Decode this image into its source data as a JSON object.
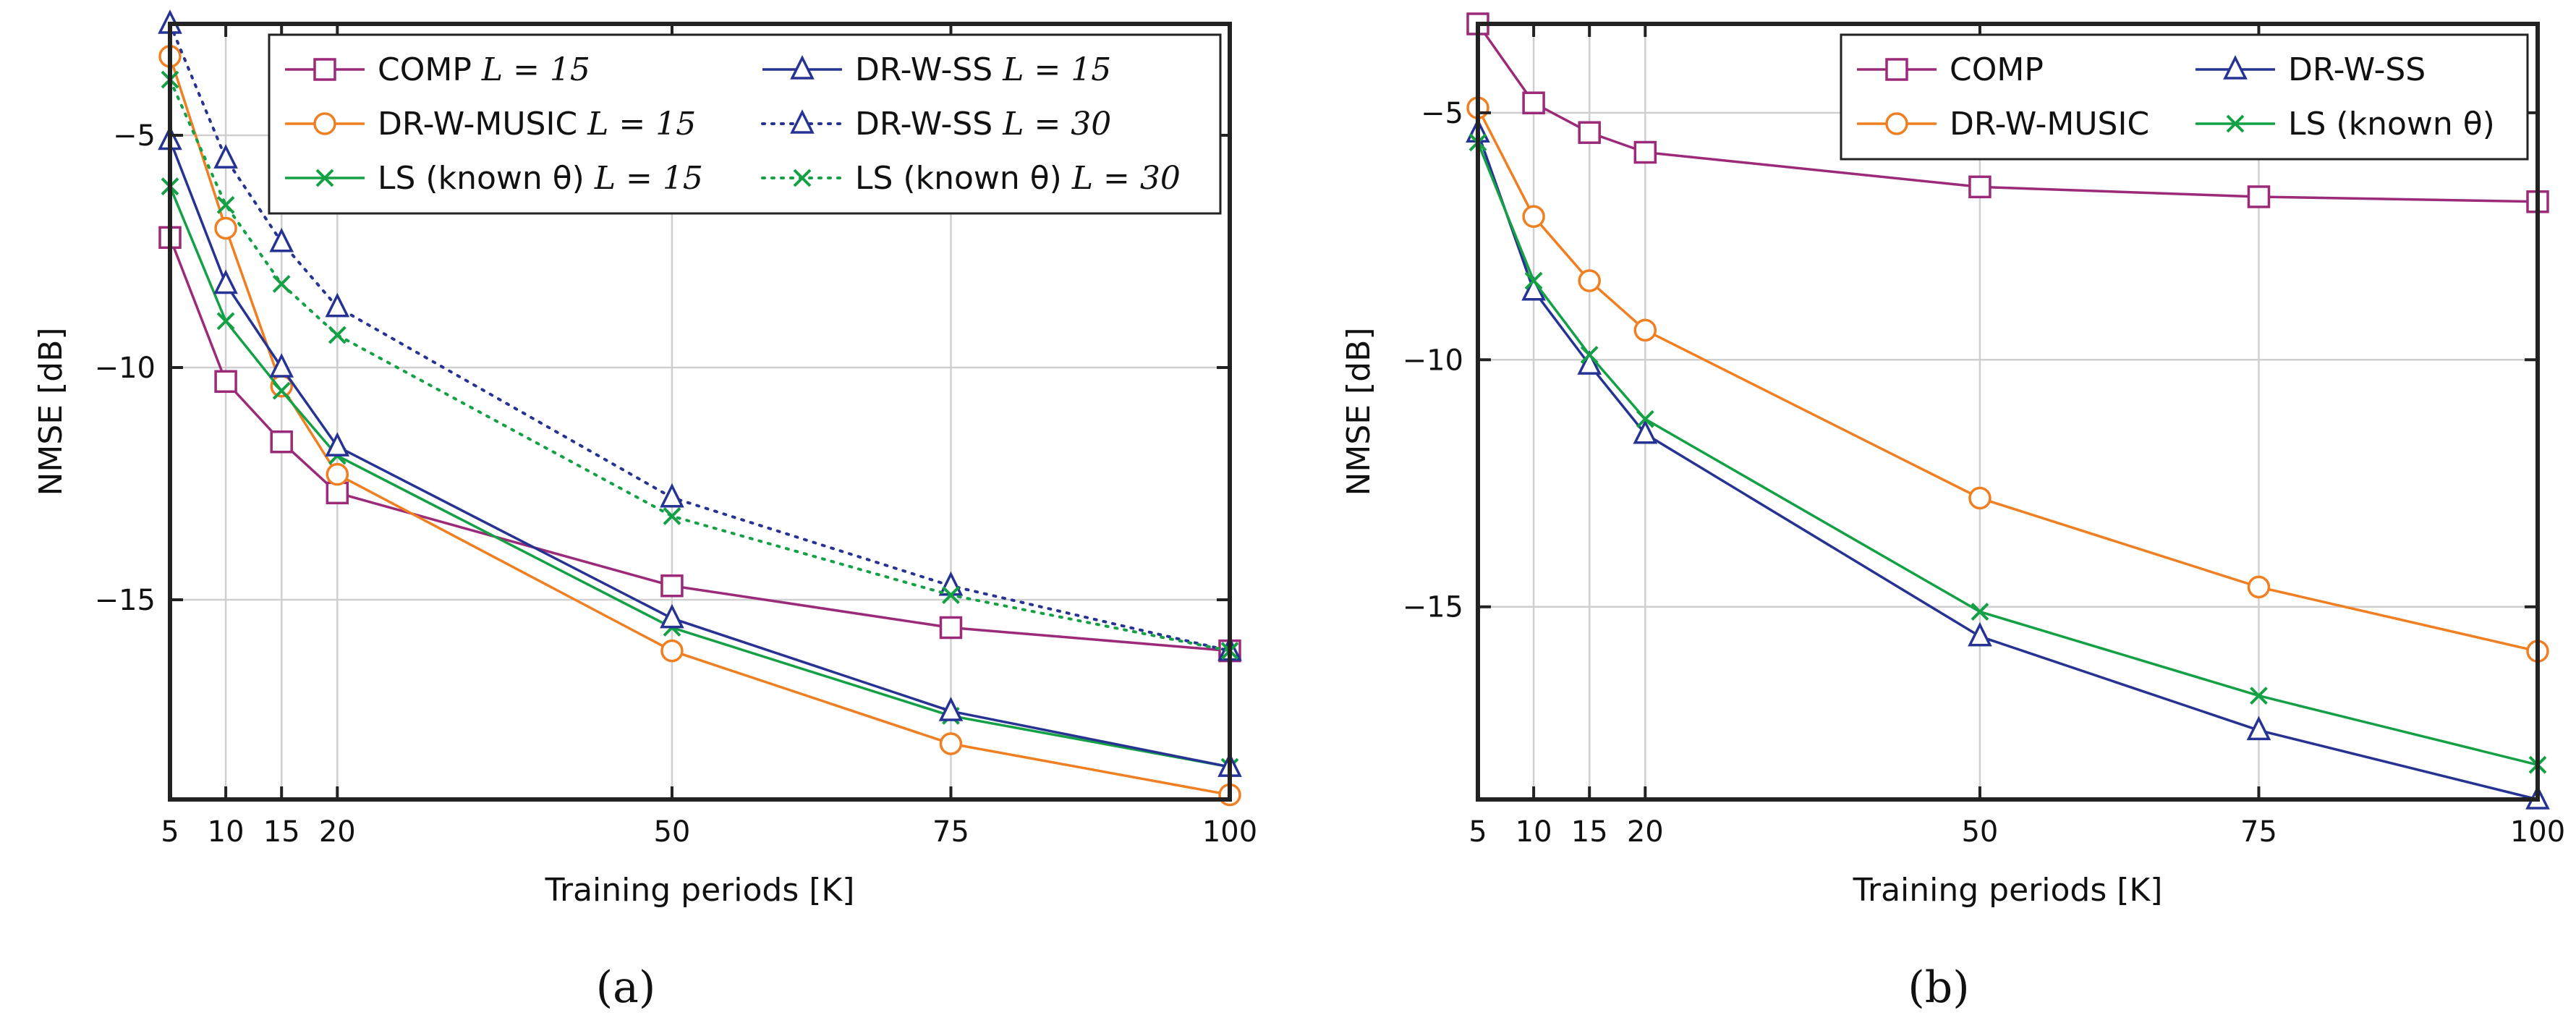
{
  "colors": {
    "comp": "#9b2a78",
    "music": "#f07f22",
    "ss": "#263393",
    "ls": "#14a045",
    "grid": "#cfcfcf",
    "axis": "#222222"
  },
  "chart_data": [
    {
      "type": "line",
      "panel_label": "(a)",
      "xlabel": "Training periods [K]",
      "ylabel": "NMSE [dB]",
      "xlim": [
        5,
        100
      ],
      "ylim": [
        -19.3,
        -2.6
      ],
      "xticks": [
        5,
        10,
        15,
        20,
        50,
        75,
        100
      ],
      "yticks": [
        -5,
        -10,
        -15
      ],
      "ytick_labels": [
        "−5",
        "−10",
        "−15"
      ],
      "grid": true,
      "legend_position": "top-right",
      "x": [
        5,
        10,
        15,
        20,
        50,
        75,
        100
      ],
      "series": [
        {
          "name": "COMP L = 15",
          "label_main": "COMP",
          "label_math": "L = 15",
          "color_key": "comp",
          "marker": "square",
          "dash": "solid",
          "values": [
            -7.2,
            -10.3,
            -11.6,
            -12.7,
            -14.7,
            -15.6,
            -16.1
          ]
        },
        {
          "name": "DR-W-MUSIC L = 15",
          "label_main": "DR-W-MUSIC",
          "label_math": "L = 15",
          "color_key": "music",
          "marker": "circle",
          "dash": "solid",
          "values": [
            -3.3,
            -7.0,
            -10.4,
            -12.3,
            -16.1,
            -18.1,
            -19.2
          ]
        },
        {
          "name": "LS (known θ) L = 15",
          "label_main": "LS (known θ)",
          "label_math": "L = 15",
          "color_key": "ls",
          "marker": "x",
          "dash": "solid",
          "values": [
            -6.1,
            -9.0,
            -10.5,
            -11.9,
            -15.6,
            -17.5,
            -18.6
          ]
        },
        {
          "name": "DR-W-SS L = 15",
          "label_main": "DR-W-SS",
          "label_math": "L = 15",
          "color_key": "ss",
          "marker": "triangle",
          "dash": "solid",
          "values": [
            -5.1,
            -8.2,
            -10.0,
            -11.7,
            -15.4,
            -17.4,
            -18.6
          ]
        },
        {
          "name": "DR-W-SS L = 30",
          "label_main": "DR-W-SS",
          "label_math": "L = 30",
          "color_key": "ss",
          "marker": "triangle",
          "dash": "dotted",
          "values": [
            -2.6,
            -5.5,
            -7.3,
            -8.7,
            -12.8,
            -14.7,
            -16.1
          ]
        },
        {
          "name": "LS (known θ) L = 30",
          "label_main": "LS (known θ)",
          "label_math": "L = 30",
          "color_key": "ls",
          "marker": "x",
          "dash": "dotted",
          "values": [
            -3.8,
            -6.5,
            -8.2,
            -9.3,
            -13.2,
            -14.9,
            -16.1
          ]
        }
      ],
      "legend_order": [
        0,
        3,
        1,
        4,
        2,
        5
      ]
    },
    {
      "type": "line",
      "panel_label": "(b)",
      "xlabel": "Training periods [K]",
      "ylabel": "NMSE [dB]",
      "xlim": [
        5,
        100
      ],
      "ylim": [
        -18.9,
        -3.2
      ],
      "xticks": [
        5,
        10,
        15,
        20,
        50,
        75,
        100
      ],
      "yticks": [
        -5,
        -10,
        -15
      ],
      "ytick_labels": [
        "−5",
        "−10",
        "−15"
      ],
      "grid": true,
      "legend_position": "top-right",
      "x": [
        5,
        10,
        15,
        20,
        50,
        75,
        100
      ],
      "series": [
        {
          "name": "COMP",
          "label_main": "COMP",
          "label_math": "",
          "color_key": "comp",
          "marker": "square",
          "dash": "solid",
          "values": [
            -3.2,
            -4.8,
            -5.4,
            -5.8,
            -6.5,
            -6.7,
            -6.8
          ]
        },
        {
          "name": "DR-W-MUSIC",
          "label_main": "DR-W-MUSIC",
          "label_math": "",
          "color_key": "music",
          "marker": "circle",
          "dash": "solid",
          "values": [
            -4.9,
            -7.1,
            -8.4,
            -9.4,
            -12.8,
            -14.6,
            -15.9
          ]
        },
        {
          "name": "DR-W-SS",
          "label_main": "DR-W-SS",
          "label_math": "",
          "color_key": "ss",
          "marker": "triangle",
          "dash": "solid",
          "values": [
            -5.4,
            -8.6,
            -10.1,
            -11.5,
            -15.6,
            -17.5,
            -18.9
          ]
        },
        {
          "name": "LS (known θ)",
          "label_main": "LS (known θ)",
          "label_math": "",
          "color_key": "ls",
          "marker": "x",
          "dash": "solid",
          "values": [
            -5.6,
            -8.4,
            -9.9,
            -11.2,
            -15.1,
            -16.8,
            -18.2
          ]
        }
      ],
      "legend_order": [
        0,
        2,
        1,
        3
      ]
    }
  ]
}
